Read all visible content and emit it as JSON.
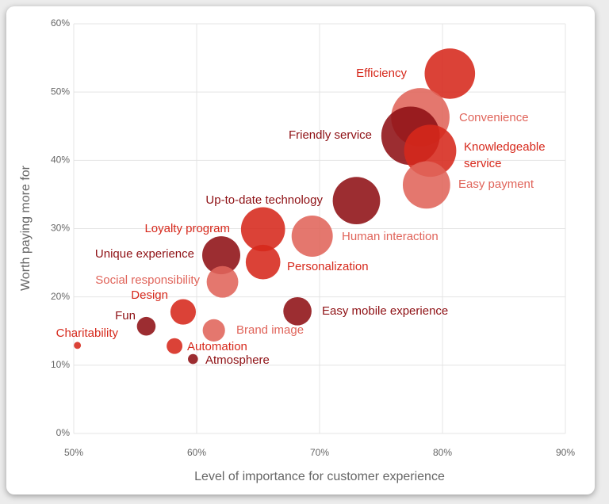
{
  "chart_data": {
    "type": "bubble",
    "x_label": "Level of importance for customer experience",
    "y_label": "Worth paying more for",
    "xlim": [
      50,
      90
    ],
    "ylim": [
      0,
      60
    ],
    "xticks": [
      {
        "value": 50,
        "label": "50%"
      },
      {
        "value": 60,
        "label": "60%"
      },
      {
        "value": 70,
        "label": "70%"
      },
      {
        "value": 80,
        "label": "80%"
      },
      {
        "value": 90,
        "label": "90%"
      }
    ],
    "yticks": [
      {
        "value": 0,
        "label": "0%"
      },
      {
        "value": 10,
        "label": "10%"
      },
      {
        "value": 20,
        "label": "20%"
      },
      {
        "value": 30,
        "label": "30%"
      },
      {
        "value": 40,
        "label": "40%"
      },
      {
        "value": 50,
        "label": "50%"
      },
      {
        "value": 60,
        "label": "60%"
      }
    ],
    "grid": true,
    "points": [
      {
        "name": "Efficiency",
        "x": 80.6,
        "y": 52.7,
        "size": 102,
        "color": "#d6281b"
      },
      {
        "name": "Convenience",
        "x": 78.2,
        "y": 46.3,
        "size": 137,
        "color": "#e0645a"
      },
      {
        "name": "Friendly service",
        "x": 77.4,
        "y": 43.6,
        "size": 137,
        "color": "#8e1014"
      },
      {
        "name": "Knowledgeable service",
        "x": 79.0,
        "y": 41.4,
        "size": 109,
        "color": "#d6281b"
      },
      {
        "name": "Easy payment",
        "x": 78.7,
        "y": 36.4,
        "size": 90,
        "color": "#e0645a"
      },
      {
        "name": "Up-to-date technology",
        "x": 73.0,
        "y": 34.1,
        "size": 90,
        "color": "#8e1014"
      },
      {
        "name": "Human interaction",
        "x": 69.4,
        "y": 28.9,
        "size": 68,
        "color": "#e0645a"
      },
      {
        "name": "Loyalty program",
        "x": 65.4,
        "y": 29.9,
        "size": 78,
        "color": "#d6281b"
      },
      {
        "name": "Personalization",
        "x": 65.4,
        "y": 25.1,
        "size": 48,
        "color": "#d6281b"
      },
      {
        "name": "Unique experience",
        "x": 62.0,
        "y": 26.1,
        "size": 58,
        "color": "#8e1014"
      },
      {
        "name": "Social responsibility",
        "x": 62.1,
        "y": 22.2,
        "size": 40,
        "color": "#e0645a"
      },
      {
        "name": "Design",
        "x": 58.9,
        "y": 17.8,
        "size": 26,
        "color": "#d6281b"
      },
      {
        "name": "Fun",
        "x": 55.9,
        "y": 15.7,
        "size": 14,
        "color": "#8e1014"
      },
      {
        "name": "Charitability",
        "x": 50.3,
        "y": 12.9,
        "size": 2,
        "color": "#d6281b"
      },
      {
        "name": "Automation",
        "x": 58.2,
        "y": 12.8,
        "size": 10,
        "color": "#d6281b"
      },
      {
        "name": "Atmosphere",
        "x": 59.7,
        "y": 10.9,
        "size": 4,
        "color": "#8e1014"
      },
      {
        "name": "Brand image",
        "x": 61.4,
        "y": 15.1,
        "size": 20,
        "color": "#e0645a"
      },
      {
        "name": "Easy mobile experience",
        "x": 68.2,
        "y": 17.9,
        "size": 32,
        "color": "#8e1014"
      }
    ]
  }
}
